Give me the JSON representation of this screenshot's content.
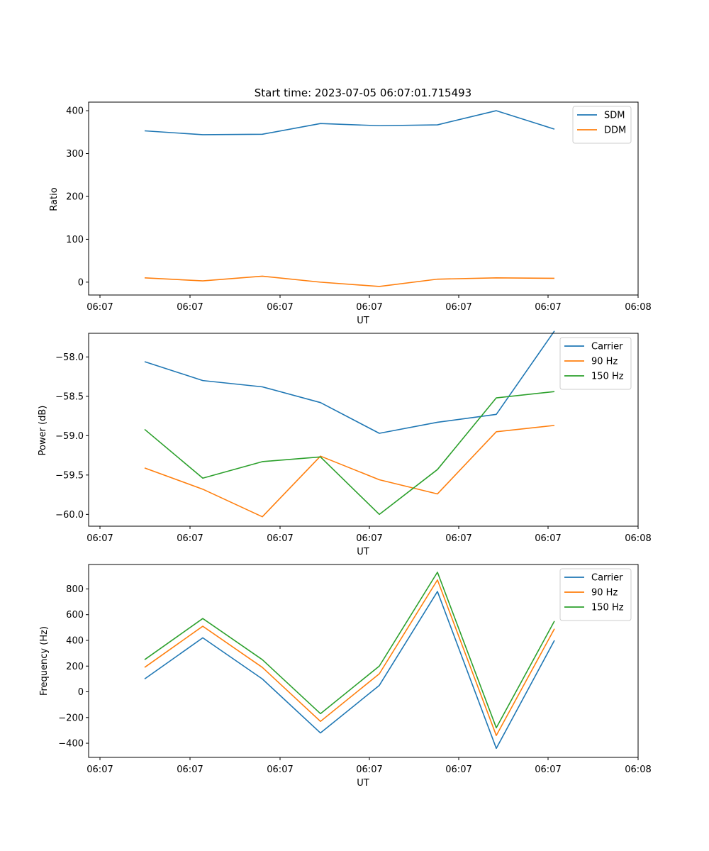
{
  "chart_data": [
    {
      "type": "line",
      "title": "Start time: 2023-07-05 06:07:01.715493",
      "xlabel": "UT",
      "ylabel": "Ratio",
      "x_tick_labels": [
        "06:07",
        "06:07",
        "06:07",
        "06:07",
        "06:07",
        "06:07",
        "06:07",
        "06:08"
      ],
      "y_ticks": [
        0,
        100,
        200,
        300,
        400
      ],
      "y_tick_labels": [
        "0",
        "100",
        "200",
        "300",
        "400"
      ],
      "ylim": [
        -30,
        420
      ],
      "legend_position": "top-right",
      "series": [
        {
          "name": "SDM",
          "color": "#1f77b4",
          "values": [
            353,
            344,
            345,
            370,
            365,
            367,
            400,
            357
          ]
        },
        {
          "name": "DDM",
          "color": "#ff7f0e",
          "values": [
            10,
            3,
            14,
            0,
            -10,
            7,
            10,
            9
          ]
        }
      ]
    },
    {
      "type": "line",
      "title": "",
      "xlabel": "UT",
      "ylabel": "Power (dB)",
      "x_tick_labels": [
        "06:07",
        "06:07",
        "06:07",
        "06:07",
        "06:07",
        "06:07",
        "06:07",
        "06:08"
      ],
      "y_ticks": [
        -58.0,
        -58.5,
        -59.0,
        -59.5,
        -60.0
      ],
      "y_tick_labels": [
        "−58.0",
        "−58.5",
        "−59.0",
        "−59.5",
        "−60.0"
      ],
      "ylim": [
        -60.15,
        -57.7
      ],
      "legend_position": "top-right",
      "series": [
        {
          "name": "Carrier",
          "color": "#1f77b4",
          "values": [
            -58.06,
            -58.3,
            -58.38,
            -58.58,
            -58.97,
            -58.83,
            -58.73,
            -57.67
          ]
        },
        {
          "name": "90 Hz",
          "color": "#ff7f0e",
          "values": [
            -59.41,
            -59.68,
            -60.03,
            -59.26,
            -59.56,
            -59.74,
            -58.95,
            -58.87
          ]
        },
        {
          "name": "150 Hz",
          "color": "#2ca02c",
          "values": [
            -58.92,
            -59.54,
            -59.33,
            -59.27,
            -60.0,
            -59.43,
            -58.52,
            -58.44
          ]
        }
      ]
    },
    {
      "type": "line",
      "title": "",
      "xlabel": "UT",
      "ylabel": "Frequency (Hz)",
      "x_tick_labels": [
        "06:07",
        "06:07",
        "06:07",
        "06:07",
        "06:07",
        "06:07",
        "06:07",
        "06:08"
      ],
      "y_ticks": [
        -400,
        -200,
        0,
        200,
        400,
        600,
        800
      ],
      "y_tick_labels": [
        "−400",
        "−200",
        "0",
        "200",
        "400",
        "600",
        "800"
      ],
      "ylim": [
        -510,
        990
      ],
      "legend_position": "top-right",
      "series": [
        {
          "name": "Carrier",
          "color": "#1f77b4",
          "values": [
            100,
            420,
            100,
            -320,
            50,
            780,
            -440,
            400
          ]
        },
        {
          "name": "90 Hz",
          "color": "#ff7f0e",
          "values": [
            190,
            510,
            190,
            -230,
            140,
            870,
            -340,
            490
          ]
        },
        {
          "name": "150 Hz",
          "color": "#2ca02c",
          "values": [
            250,
            570,
            250,
            -170,
            200,
            930,
            -280,
            550
          ]
        }
      ]
    }
  ]
}
